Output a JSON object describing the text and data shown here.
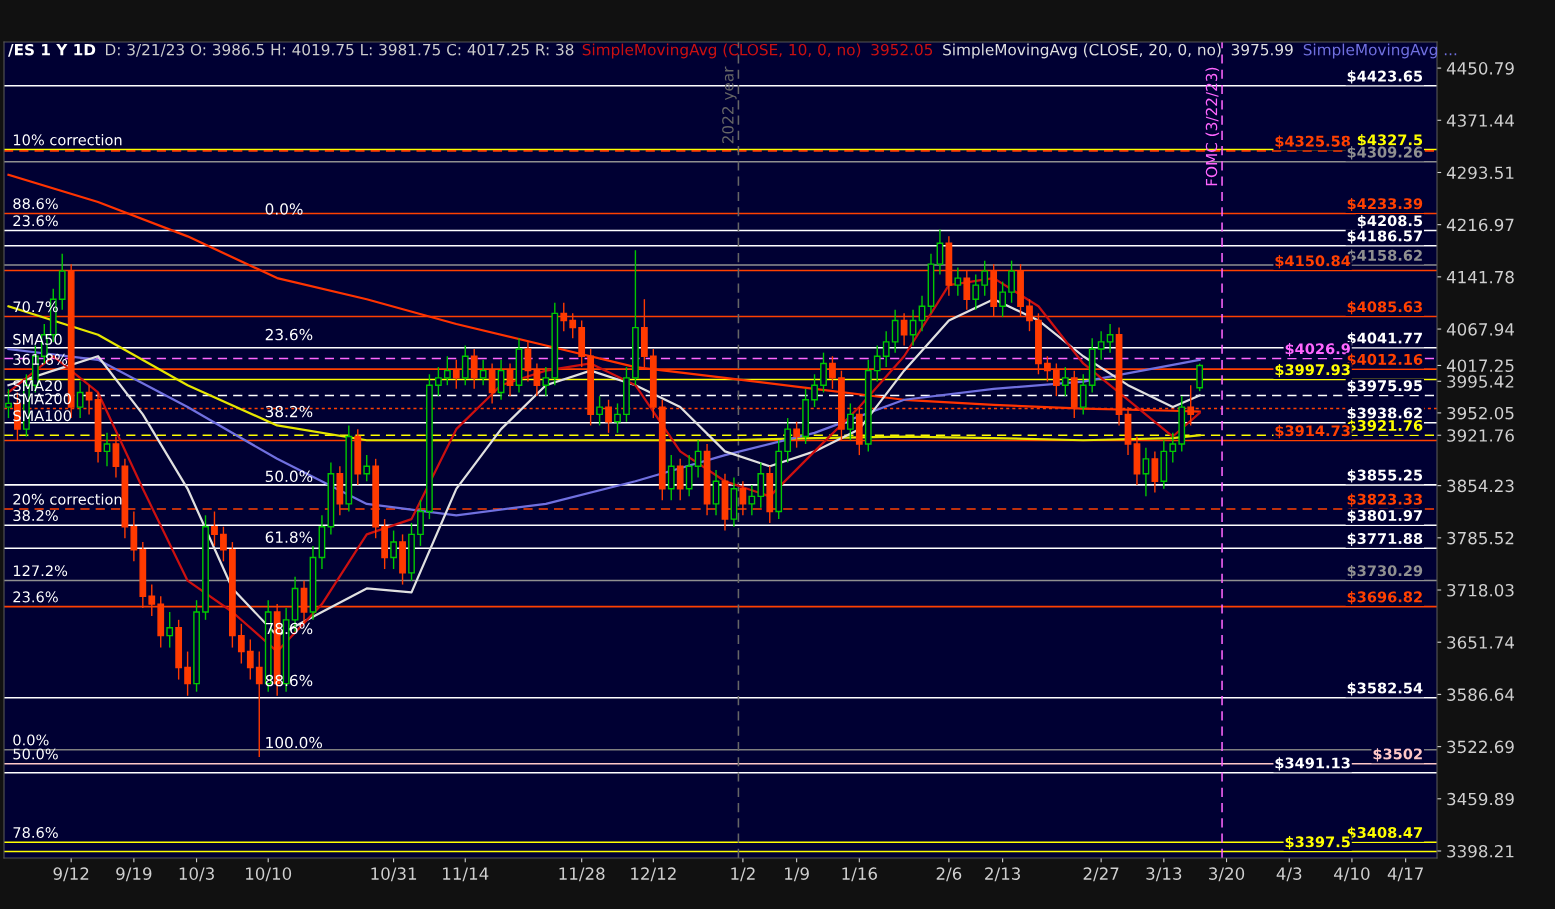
{
  "chart_data": {
    "type": "candlestick",
    "title": "/ES 1 Y 1D",
    "subtitle": "D: 3/21/23 O: 3986.5 H: 4019.75 L: 3981.75 C: 4017.25 R: 38",
    "log": true,
    "grid": false,
    "legend": "top right",
    "ylim": [
      3390,
      4491
    ],
    "categories": [
      null,
      null,
      null,
      null,
      null,
      null,
      null,
      "9/12",
      null,
      null,
      null,
      null,
      null,
      null,
      "9/19",
      null,
      null,
      null,
      null,
      null,
      null,
      "10/3",
      null,
      null,
      null,
      null,
      null,
      null,
      null,
      "10/10",
      null,
      null,
      null,
      null,
      null,
      null,
      null,
      null,
      null,
      null,
      null,
      null,
      null,
      "10/31",
      null,
      null,
      null,
      null,
      null,
      null,
      null,
      "11/14",
      null,
      null,
      null,
      null,
      null,
      null,
      null,
      null,
      null,
      null,
      null,
      null,
      "11/28",
      null,
      null,
      null,
      null,
      null,
      null,
      null,
      "12/12",
      null,
      null,
      null,
      null,
      null,
      null,
      null,
      null,
      null,
      "1/2",
      null,
      null,
      null,
      null,
      null,
      "1/9",
      null,
      null,
      null,
      null,
      null,
      null,
      "1/16",
      null,
      null,
      null,
      null,
      null,
      null,
      null,
      null,
      null,
      "2/6",
      null,
      null,
      null,
      null,
      null,
      "2/13",
      null,
      null,
      null,
      null,
      null,
      null,
      null,
      null,
      null,
      null,
      "2/27",
      null,
      null,
      null,
      null,
      null,
      null,
      "3/13",
      null,
      null,
      null,
      null,
      null,
      null,
      "3/20",
      null,
      null,
      null,
      null,
      null,
      null,
      "4/3",
      null,
      null,
      null,
      null,
      null,
      null,
      "4/10",
      null,
      null,
      null,
      null,
      null,
      "4/17",
      null,
      null,
      null
    ],
    "yticks": [
      4450.79,
      4371.44,
      4293.51,
      4216.97,
      4141.78,
      4067.94,
      4017.25,
      3995.42,
      3952.05,
      3921.76,
      3854.23,
      3785.52,
      3718.03,
      3651.74,
      3586.64,
      3522.69,
      3459.89,
      3398.21
    ],
    "colors": [
      "#00c800",
      "#ff3a00",
      "#00c800",
      "#00c800",
      "#00c800",
      "#00c800",
      "#00c800",
      "#ff3a00",
      "#00c800",
      "#ff3a00",
      "#ff3a00",
      "#00c800",
      "#ff3a00",
      "#ff3a00",
      "#ff3a00",
      "#ff3a00",
      "#ff3a00",
      "#ff3a00",
      "#00c800",
      "#ff3a00",
      "#ff3a00",
      "#00c800",
      "#00c800",
      "#ff3a00",
      "#ff3a00",
      "#ff3a00",
      "#ff3a00",
      "#ff3a00",
      "#ff3a00",
      "#00c800",
      "#ff3a00",
      "#00c800",
      "#00c800",
      "#ff3a00",
      "#00c800",
      "#00c800",
      "#00c800",
      "#ff3a00",
      "#00c800",
      "#ff3a00",
      "#00c800",
      "#ff3a00",
      "#ff3a00",
      "#00c800",
      "#ff3a00",
      "#00c800",
      "#00c800",
      "#00c800",
      "#00c800",
      "#00c800",
      "#ff3a00",
      "#00c800",
      "#ff3a00",
      "#00c800",
      "#ff3a00",
      "#00c800",
      "#ff3a00",
      "#00c800",
      "#ff3a00",
      "#ff3a00",
      "#00c800",
      "#00c800",
      "#ff3a00",
      "#ff3a00",
      "#ff3a00",
      "#ff3a00",
      "#00c800",
      "#ff3a00",
      "#00c800",
      "#00c800",
      "#00c800",
      "#ff3a00",
      "#ff3a00",
      "#ff3a00",
      "#00c800",
      "#ff3a00",
      "#00c800",
      "#00c800",
      "#ff3a00",
      "#00c800",
      "#ff3a00",
      "#00c800",
      "#ff3a00",
      "#00c800",
      "#00c800",
      "#ff3a00",
      "#00c800",
      "#00c800",
      "#ff3a00",
      "#00c800",
      "#00c800",
      "#00c800",
      "#ff3a00",
      "#ff3a00",
      "#00c800",
      "#ff3a00",
      "#00c800",
      "#00c800",
      "#00c800",
      "#00c800",
      "#ff3a00",
      "#00c800",
      "#00c800",
      "#00c800",
      "#00c800",
      "#ff3a00",
      "#00c800",
      "#ff3a00",
      "#00c800",
      "#00c800",
      "#ff3a00",
      "#00c800",
      "#00c800",
      "#ff3a00",
      "#ff3a00",
      "#ff3a00",
      "#ff3a00",
      "#ff3a00",
      "#00c800",
      "#ff3a00",
      "#00c800",
      "#00c800",
      "#00c800",
      "#00c800",
      "#ff3a00",
      "#ff3a00",
      "#ff3a00",
      "#00c800",
      "#ff3a00",
      "#00c800",
      "#00c800",
      "#00c800",
      "#ff3a00",
      "#00c800",
      null,
      null,
      null,
      null,
      null,
      null,
      null,
      null,
      null,
      null,
      null,
      null,
      null,
      null,
      null,
      null,
      null,
      null,
      null,
      null,
      null,
      null,
      null,
      null,
      null,
      null
    ],
    "ohlc": [
      [
        3960,
        3985,
        3945,
        3965
      ],
      [
        3965,
        3980,
        3915,
        3930
      ],
      [
        3930,
        4005,
        3920,
        3990
      ],
      [
        3990,
        4045,
        3980,
        4030
      ],
      [
        4030,
        4075,
        4020,
        4060
      ],
      [
        4060,
        4125,
        4050,
        4110
      ],
      [
        4110,
        4175,
        4095,
        4150
      ],
      [
        4150,
        4160,
        3945,
        3960
      ],
      [
        3960,
        3995,
        3945,
        3980
      ],
      [
        3980,
        3990,
        3950,
        3970
      ],
      [
        3970,
        3980,
        3885,
        3900
      ],
      [
        3900,
        3925,
        3880,
        3910
      ],
      [
        3910,
        3920,
        3865,
        3880
      ],
      [
        3880,
        3890,
        3785,
        3800
      ],
      [
        3800,
        3820,
        3755,
        3770
      ],
      [
        3770,
        3780,
        3695,
        3710
      ],
      [
        3710,
        3725,
        3685,
        3700
      ],
      [
        3700,
        3710,
        3645,
        3660
      ],
      [
        3660,
        3690,
        3645,
        3670
      ],
      [
        3670,
        3680,
        3605,
        3620
      ],
      [
        3620,
        3640,
        3585,
        3600
      ],
      [
        3600,
        3705,
        3590,
        3690
      ],
      [
        3690,
        3815,
        3680,
        3800
      ],
      [
        3800,
        3820,
        3775,
        3790
      ],
      [
        3790,
        3800,
        3755,
        3770
      ],
      [
        3770,
        3780,
        3645,
        3660
      ],
      [
        3660,
        3675,
        3625,
        3640
      ],
      [
        3640,
        3655,
        3605,
        3620
      ],
      [
        3620,
        3640,
        3510,
        3600
      ],
      [
        3600,
        3705,
        3590,
        3690
      ],
      [
        3690,
        3700,
        3585,
        3600
      ],
      [
        3600,
        3695,
        3590,
        3680
      ],
      [
        3680,
        3735,
        3665,
        3720
      ],
      [
        3720,
        3730,
        3675,
        3690
      ],
      [
        3690,
        3775,
        3680,
        3760
      ],
      [
        3760,
        3815,
        3745,
        3800
      ],
      [
        3800,
        3885,
        3790,
        3870
      ],
      [
        3870,
        3880,
        3815,
        3830
      ],
      [
        3830,
        3935,
        3820,
        3920
      ],
      [
        3920,
        3930,
        3855,
        3870
      ],
      [
        3870,
        3895,
        3860,
        3880
      ],
      [
        3880,
        3890,
        3785,
        3800
      ],
      [
        3800,
        3810,
        3745,
        3760
      ],
      [
        3760,
        3795,
        3745,
        3780
      ],
      [
        3780,
        3790,
        3725,
        3740
      ],
      [
        3740,
        3805,
        3730,
        3790
      ],
      [
        3790,
        3835,
        3775,
        3820
      ],
      [
        3820,
        4005,
        3810,
        3990
      ],
      [
        3990,
        4015,
        3975,
        4000
      ],
      [
        4000,
        4030,
        3990,
        4010
      ],
      [
        4010,
        4025,
        3985,
        4000
      ],
      [
        4000,
        4045,
        3990,
        4030
      ],
      [
        4030,
        4040,
        3985,
        4000
      ],
      [
        4000,
        4025,
        3990,
        4010
      ],
      [
        4010,
        4020,
        3965,
        3980
      ],
      [
        3980,
        4025,
        3970,
        4010
      ],
      [
        4010,
        4020,
        3975,
        3990
      ],
      [
        3990,
        4055,
        3980,
        4040
      ],
      [
        4040,
        4050,
        3995,
        4010
      ],
      [
        4010,
        4020,
        3975,
        3990
      ],
      [
        3990,
        4015,
        3975,
        4000
      ],
      [
        4000,
        4105,
        3990,
        4090
      ],
      [
        4090,
        4105,
        4065,
        4080
      ],
      [
        4080,
        4090,
        4055,
        4070
      ],
      [
        4070,
        4080,
        4015,
        4030
      ],
      [
        4030,
        4040,
        3935,
        3950
      ],
      [
        3950,
        3975,
        3935,
        3960
      ],
      [
        3960,
        3970,
        3925,
        3940
      ],
      [
        3940,
        3965,
        3925,
        3950
      ],
      [
        3950,
        4015,
        3940,
        4000
      ],
      [
        4000,
        4180,
        3990,
        4070
      ],
      [
        4070,
        4110,
        4015,
        4030
      ],
      [
        4030,
        4040,
        3945,
        3960
      ],
      [
        3960,
        3970,
        3835,
        3850
      ],
      [
        3850,
        3895,
        3835,
        3880
      ],
      [
        3880,
        3890,
        3835,
        3850
      ],
      [
        3850,
        3895,
        3840,
        3880
      ],
      [
        3880,
        3915,
        3865,
        3900
      ],
      [
        3900,
        3910,
        3815,
        3830
      ],
      [
        3830,
        3875,
        3815,
        3860
      ],
      [
        3860,
        3870,
        3795,
        3810
      ],
      [
        3810,
        3865,
        3800,
        3850
      ],
      [
        3850,
        3860,
        3815,
        3830
      ],
      [
        3830,
        3855,
        3815,
        3840
      ],
      [
        3840,
        3885,
        3825,
        3870
      ],
      [
        3870,
        3880,
        3805,
        3820
      ],
      [
        3820,
        3915,
        3810,
        3900
      ],
      [
        3900,
        3945,
        3885,
        3930
      ],
      [
        3930,
        3940,
        3905,
        3920
      ],
      [
        3920,
        3985,
        3910,
        3970
      ],
      [
        3970,
        4005,
        3960,
        3990
      ],
      [
        3990,
        4035,
        3980,
        4020
      ],
      [
        4020,
        4030,
        3985,
        4000
      ],
      [
        4000,
        4010,
        3915,
        3930
      ],
      [
        3930,
        3965,
        3915,
        3950
      ],
      [
        3950,
        3960,
        3895,
        3910
      ],
      [
        3910,
        4025,
        3900,
        4010
      ],
      [
        4010,
        4045,
        3995,
        4030
      ],
      [
        4030,
        4065,
        4015,
        4050
      ],
      [
        4050,
        4095,
        4035,
        4080
      ],
      [
        4080,
        4090,
        4045,
        4060
      ],
      [
        4060,
        4095,
        4045,
        4080
      ],
      [
        4080,
        4115,
        4065,
        4100
      ],
      [
        4100,
        4175,
        4090,
        4160
      ],
      [
        4160,
        4210,
        4145,
        4190
      ],
      [
        4190,
        4200,
        4115,
        4130
      ],
      [
        4130,
        4155,
        4115,
        4140
      ],
      [
        4140,
        4150,
        4095,
        4110
      ],
      [
        4110,
        4145,
        4095,
        4130
      ],
      [
        4130,
        4165,
        4115,
        4150
      ],
      [
        4150,
        4160,
        4085,
        4100
      ],
      [
        4100,
        4135,
        4085,
        4120
      ],
      [
        4120,
        4165,
        4105,
        4150
      ],
      [
        4150,
        4160,
        4085,
        4100
      ],
      [
        4100,
        4110,
        4065,
        4080
      ],
      [
        4080,
        4090,
        4005,
        4020
      ],
      [
        4020,
        4030,
        3995,
        4010
      ],
      [
        4010,
        4020,
        3975,
        3990
      ],
      [
        3990,
        4015,
        3975,
        4000
      ],
      [
        4000,
        4010,
        3945,
        3960
      ],
      [
        3960,
        4005,
        3950,
        3990
      ],
      [
        3990,
        4055,
        3980,
        4040
      ],
      [
        4040,
        4065,
        4025,
        4050
      ],
      [
        4050,
        4075,
        4035,
        4060
      ],
      [
        4060,
        4070,
        3935,
        3950
      ],
      [
        3950,
        3960,
        3895,
        3910
      ],
      [
        3910,
        3920,
        3855,
        3870
      ],
      [
        3870,
        3905,
        3840,
        3890
      ],
      [
        3890,
        3900,
        3845,
        3860
      ],
      [
        3860,
        3915,
        3850,
        3900
      ],
      [
        3900,
        3925,
        3885,
        3910
      ],
      [
        3910,
        3975,
        3900,
        3960
      ],
      [
        3960,
        3990,
        3935,
        3950
      ],
      [
        3986.5,
        4019.75,
        3981.75,
        4017.25
      ],
      null,
      null,
      null,
      null,
      null,
      null,
      null,
      null,
      null,
      null,
      null,
      null,
      null,
      null,
      null,
      null,
      null,
      null,
      null,
      null,
      null,
      null,
      null,
      null,
      null,
      null
    ],
    "series": [
      {
        "type": "line",
        "color": "#ff3300",
        "values": [
          4290,
          null,
          null,
          null,
          null,
          null,
          null,
          null,
          null,
          null,
          4250,
          null,
          null,
          null,
          null,
          null,
          null,
          null,
          null,
          null,
          4200,
          null,
          null,
          null,
          null,
          null,
          null,
          null,
          null,
          null,
          4140,
          null,
          null,
          null,
          null,
          null,
          null,
          null,
          null,
          null,
          4110,
          null,
          null,
          null,
          null,
          null,
          null,
          null,
          null,
          null,
          4075,
          null,
          null,
          null,
          null,
          null,
          null,
          null,
          null,
          null,
          4045,
          null,
          null,
          null,
          null,
          null,
          null,
          null,
          null,
          null,
          4015,
          null,
          null,
          null,
          null,
          null,
          null,
          null,
          null,
          null,
          4000,
          null,
          null,
          null,
          null,
          null,
          null,
          null,
          null,
          null,
          3985,
          null,
          null,
          null,
          null,
          null,
          null,
          null,
          null,
          null,
          3970,
          null,
          null,
          null,
          null,
          null,
          null,
          null,
          null,
          null,
          3963,
          null,
          null,
          null,
          null,
          null,
          null,
          null,
          null,
          null,
          3958,
          null,
          null,
          null,
          null,
          null,
          null,
          null,
          null,
          null,
          3955,
          null,
          null,
          3954,
          null,
          null,
          null,
          null,
          null,
          null,
          null,
          null,
          null,
          null,
          null,
          null,
          null,
          null,
          null,
          null,
          null,
          null,
          null,
          null,
          null,
          null,
          null,
          null,
          null,
          null
        ]
      },
      {
        "type": "line",
        "color": "#e6e600",
        "values": [
          4100,
          null,
          null,
          null,
          null,
          null,
          null,
          null,
          null,
          null,
          4060,
          null,
          null,
          null,
          null,
          null,
          null,
          null,
          null,
          null,
          3990,
          null,
          null,
          null,
          null,
          null,
          null,
          null,
          null,
          null,
          3935,
          null,
          null,
          null,
          null,
          null,
          null,
          null,
          null,
          null,
          3915,
          null,
          null,
          null,
          null,
          null,
          null,
          null,
          null,
          null,
          3915,
          null,
          null,
          null,
          null,
          null,
          null,
          null,
          null,
          null,
          3915,
          null,
          null,
          null,
          null,
          null,
          null,
          null,
          null,
          null,
          3915,
          null,
          null,
          null,
          null,
          null,
          null,
          null,
          null,
          null,
          3915,
          null,
          null,
          null,
          null,
          null,
          null,
          null,
          null,
          null,
          3918,
          null,
          null,
          null,
          null,
          null,
          null,
          null,
          null,
          null,
          3920,
          null,
          null,
          null,
          null,
          null,
          null,
          null,
          null,
          null,
          3918,
          null,
          null,
          null,
          null,
          null,
          null,
          null,
          null,
          null,
          3915,
          null,
          null,
          null,
          null,
          null,
          null,
          null,
          null,
          null,
          3918,
          null,
          null,
          3921.76,
          null,
          null,
          null,
          null,
          null,
          null,
          null,
          null,
          null,
          null,
          null,
          null,
          null,
          null,
          null,
          null,
          null,
          null,
          null,
          null,
          null,
          null,
          null,
          null,
          null,
          null
        ]
      },
      {
        "type": "line",
        "name": "SimpleMovingAvg ...",
        "color": "#7070e0",
        "values": [
          4040,
          null,
          null,
          null,
          null,
          null,
          null,
          null,
          null,
          null,
          4025,
          null,
          null,
          null,
          null,
          null,
          null,
          null,
          null,
          null,
          3960,
          null,
          null,
          null,
          null,
          null,
          null,
          null,
          null,
          null,
          3890,
          null,
          null,
          null,
          null,
          null,
          null,
          null,
          null,
          null,
          3830,
          null,
          null,
          null,
          null,
          null,
          null,
          null,
          null,
          null,
          3815,
          null,
          null,
          null,
          null,
          null,
          null,
          null,
          null,
          null,
          3830,
          null,
          null,
          null,
          null,
          null,
          null,
          null,
          null,
          null,
          3860,
          null,
          null,
          null,
          null,
          null,
          null,
          null,
          null,
          null,
          3895,
          null,
          null,
          null,
          null,
          null,
          null,
          null,
          null,
          null,
          3925,
          null,
          null,
          null,
          null,
          null,
          null,
          null,
          null,
          null,
          3970,
          null,
          null,
          null,
          null,
          null,
          null,
          null,
          null,
          null,
          3985,
          null,
          null,
          null,
          null,
          null,
          null,
          null,
          null,
          null,
          3995,
          null,
          null,
          null,
          null,
          null,
          null,
          null,
          null,
          null,
          4018,
          null,
          null,
          4025,
          null,
          null,
          null,
          null,
          null,
          null,
          null,
          null,
          null,
          null,
          null,
          null,
          null,
          null,
          null,
          null,
          null,
          null,
          null,
          null,
          null,
          null,
          null,
          null,
          null,
          null
        ]
      },
      {
        "type": "line",
        "name": "SimpleMovingAvg (CLOSE, 20, 0, no)",
        "color": "#e0e0e0",
        "values": [
          3990,
          null,
          null,
          null,
          null,
          4010,
          null,
          null,
          null,
          null,
          4030,
          null,
          null,
          null,
          null,
          3950,
          null,
          null,
          null,
          null,
          3850,
          null,
          null,
          null,
          null,
          3720,
          null,
          null,
          null,
          null,
          3660,
          null,
          null,
          null,
          null,
          3690,
          null,
          null,
          null,
          null,
          3720,
          null,
          null,
          null,
          null,
          3715,
          null,
          null,
          null,
          null,
          3850,
          null,
          null,
          null,
          null,
          3930,
          null,
          null,
          null,
          null,
          3990,
          null,
          null,
          null,
          null,
          4010,
          null,
          null,
          null,
          null,
          3990,
          null,
          null,
          null,
          null,
          3960,
          null,
          null,
          null,
          null,
          3900,
          null,
          null,
          null,
          null,
          3880,
          null,
          null,
          null,
          null,
          3900,
          null,
          null,
          null,
          null,
          3930,
          null,
          null,
          null,
          null,
          4010,
          null,
          null,
          null,
          null,
          4080,
          null,
          null,
          null,
          null,
          4110,
          null,
          null,
          null,
          null,
          4080,
          null,
          null,
          null,
          null,
          4030,
          null,
          null,
          null,
          null,
          3990,
          null,
          null,
          null,
          null,
          3960,
          null,
          null,
          3975.99,
          null,
          null,
          null,
          null,
          null,
          null,
          null,
          null,
          null,
          null,
          null,
          null,
          null,
          null,
          null,
          null,
          null,
          null,
          null,
          null,
          null,
          null,
          null,
          null,
          null,
          null
        ]
      },
      {
        "type": "line",
        "name": "SimpleMovingAvg (CLOSE, 10, 0, no)",
        "color": "#cc1010",
        "values": [
          3980,
          null,
          null,
          null,
          null,
          4030,
          null,
          null,
          null,
          null,
          3980,
          null,
          null,
          null,
          null,
          3850,
          null,
          null,
          null,
          null,
          3730,
          null,
          null,
          null,
          null,
          3690,
          null,
          null,
          null,
          null,
          3640,
          null,
          null,
          null,
          null,
          3700,
          null,
          null,
          null,
          null,
          3790,
          null,
          null,
          null,
          null,
          3810,
          null,
          null,
          null,
          null,
          3930,
          null,
          null,
          null,
          null,
          3990,
          null,
          null,
          null,
          null,
          4010,
          null,
          null,
          null,
          null,
          4020,
          null,
          null,
          null,
          null,
          3990,
          null,
          null,
          null,
          null,
          3900,
          null,
          null,
          null,
          null,
          3860,
          null,
          null,
          null,
          null,
          3840,
          null,
          null,
          null,
          null,
          3900,
          null,
          null,
          null,
          null,
          3960,
          null,
          null,
          null,
          null,
          4030,
          null,
          null,
          null,
          null,
          4130,
          null,
          null,
          null,
          null,
          4140,
          null,
          null,
          null,
          null,
          4100,
          null,
          null,
          null,
          null,
          4020,
          null,
          null,
          null,
          null,
          3970,
          null,
          null,
          null,
          null,
          3920,
          null,
          null,
          3952.05,
          null,
          null,
          null,
          null,
          null,
          null,
          null,
          null,
          null,
          null,
          null,
          null,
          null,
          null,
          null,
          null,
          null,
          null,
          null,
          null,
          null,
          null,
          null,
          null,
          null,
          null
        ]
      }
    ],
    "ref_lines": [
      {
        "axis": "y",
        "value": 4423.65,
        "label": "$4423.65",
        "color": "#ffffff",
        "line_style": "solid"
      },
      {
        "axis": "y",
        "value": 4327.5,
        "label": "$4327.5",
        "color": "#ffff00",
        "line_style": "solid"
      },
      {
        "axis": "y",
        "value": 4325.58,
        "label": "$4325.58",
        "color": "#ff4000",
        "line_style": "dashed"
      },
      {
        "axis": "y",
        "value": 4309.26,
        "label": "$4309.26",
        "color": "#909090",
        "line_style": "solid"
      },
      {
        "axis": "y",
        "value": 4233.39,
        "label": "$4233.39",
        "color": "#ff4000",
        "line_style": "solid"
      },
      {
        "axis": "y",
        "value": 4208.5,
        "label": "$4208.5",
        "color": "#ffffff",
        "line_style": "solid"
      },
      {
        "axis": "y",
        "value": 4186.57,
        "label": "$4186.57",
        "color": "#ffffff",
        "line_style": "solid"
      },
      {
        "axis": "y",
        "value": 4158.62,
        "label": "$4158.62",
        "color": "#909090",
        "line_style": "solid"
      },
      {
        "axis": "y",
        "value": 4150.84,
        "label": "$4150.84",
        "color": "#ff4000",
        "line_style": "solid"
      },
      {
        "axis": "y",
        "value": 4085.63,
        "label": "$4085.63",
        "color": "#ff4000",
        "line_style": "solid"
      },
      {
        "axis": "y",
        "value": 4041.77,
        "label": "$4041.77",
        "color": "#ffffff",
        "line_style": "solid"
      },
      {
        "axis": "y",
        "value": 4026.9,
        "label": "$4026.9",
        "color": "#ff66ff",
        "line_style": "dashed"
      },
      {
        "axis": "y",
        "value": 4012.16,
        "label": "$4012.16",
        "color": "#ff4000",
        "line_style": "solid"
      },
      {
        "axis": "y",
        "value": 3997.93,
        "label": "$3997.93",
        "color": "#ffff00",
        "line_style": "solid"
      },
      {
        "axis": "y",
        "value": 3975.95,
        "label": "$3975.95",
        "color": "#ffffff",
        "line_style": "dashed"
      },
      {
        "axis": "y",
        "value": 3958,
        "color": "#ff4000",
        "line_style": "dotted"
      },
      {
        "axis": "y",
        "value": 3938.62,
        "label": "$3938.62",
        "color": "#ffffff",
        "line_style": "solid"
      },
      {
        "axis": "y",
        "value": 3921.76,
        "label": "$3921.76",
        "color": "#ffff00",
        "line_style": "dashed"
      },
      {
        "axis": "y",
        "value": 3914.73,
        "label": "$3914.73",
        "color": "#ff4000",
        "line_style": "solid"
      },
      {
        "axis": "y",
        "value": 3855.25,
        "label": "$3855.25",
        "color": "#ffffff",
        "line_style": "solid"
      },
      {
        "axis": "y",
        "value": 3823.33,
        "label": "$3823.33",
        "color": "#ff4000",
        "line_style": "dashed"
      },
      {
        "axis": "y",
        "value": 3801.97,
        "label": "$3801.97",
        "color": "#ffffff",
        "line_style": "solid"
      },
      {
        "axis": "y",
        "value": 3771.88,
        "label": "$3771.88",
        "color": "#ffffff",
        "line_style": "solid"
      },
      {
        "axis": "y",
        "value": 3730.29,
        "label": "$3730.29",
        "color": "#909090",
        "line_style": "solid"
      },
      {
        "axis": "y",
        "value": 3696.82,
        "label": "$3696.82",
        "color": "#ff4000",
        "line_style": "solid"
      },
      {
        "axis": "y",
        "value": 3582.54,
        "label": "$3582.54",
        "color": "#ffffff",
        "line_style": "solid"
      },
      {
        "axis": "y",
        "value": 3519,
        "color": "#808080",
        "line_style": "solid"
      },
      {
        "axis": "y",
        "value": 3502,
        "label": "$3502",
        "color": "#ffc8c8",
        "line_style": "solid"
      },
      {
        "axis": "y",
        "value": 3491.13,
        "label": "$3491.13",
        "color": "#ffffff",
        "line_style": "solid"
      },
      {
        "axis": "y",
        "value": 3408.47,
        "label": "$3408.47",
        "color": "#ffff00",
        "line_style": "solid"
      },
      {
        "axis": "y",
        "value": 3397.5,
        "label": "$3397.5",
        "color": "#ffff00",
        "line_style": "solid"
      },
      {
        "axis": "x",
        "value": "1/2",
        "label": "2022 year",
        "color": "#666666",
        "line_style": "dashed"
      },
      {
        "axis": "x",
        "value": "3/20",
        "label": "FOMC (3/22/23)",
        "color": "#ff66ff",
        "line_style": "dashed"
      }
    ],
    "annotations": [
      "3952.05",
      "3975.99",
      {
        "text": "10% correction",
        "y": 4327.5
      },
      {
        "text": "88.6%",
        "y": 4233.39
      },
      {
        "text": "23.6%",
        "y": 4208.5
      },
      {
        "text": "70.7%",
        "y": 4085.63
      },
      {
        "text": "SMA50",
        "y": 4040
      },
      {
        "text": "361.8%",
        "y": 4012.16
      },
      {
        "text": "SMA20",
        "y": 3975.95
      },
      {
        "text": "SMA200",
        "y": 3958
      },
      {
        "text": "SMA100",
        "y": 3935
      },
      {
        "text": "20% correction",
        "y": 3823.33
      },
      {
        "text": "38.2%",
        "y": 3801.97
      },
      {
        "text": "127.2%",
        "y": 3730.29
      },
      {
        "text": "23.6%",
        "y": 3696.82
      },
      {
        "text": "0.0%",
        "y": 3519
      },
      {
        "text": "50.0%",
        "y": 3502
      },
      {
        "text": "78.6%",
        "y": 3408.47
      },
      {
        "text": "0.0%",
        "x": "10/10",
        "y": 4227
      },
      {
        "text": "23.6%",
        "x": "10/10",
        "y": 4048
      },
      {
        "text": "38.2%",
        "x": "10/10",
        "y": 3942
      },
      {
        "text": "50.0%",
        "x": "10/10",
        "y": 3855
      },
      {
        "text": "61.8%",
        "x": "10/10",
        "y": 3775
      },
      {
        "text": "78.6%",
        "x": "10/10",
        "y": 3658
      },
      {
        "text": "88.6%",
        "x": "10/10",
        "y": 3593
      },
      {
        "text": "100.0%",
        "x": "10/10",
        "y": 3517
      }
    ]
  }
}
